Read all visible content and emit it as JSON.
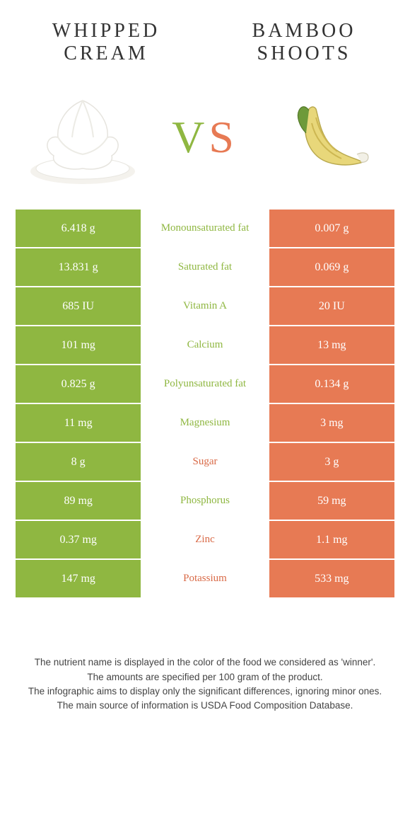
{
  "colors": {
    "left": "#8fb741",
    "right": "#e77a54",
    "left_text": "#8fb741",
    "right_text": "#d96a47"
  },
  "titles": {
    "left": "WHIPPED CREAM",
    "right": "BAMBOO SHOOTS"
  },
  "vs": {
    "v": "V",
    "s": "S"
  },
  "rows": [
    {
      "left": "6.418 g",
      "label": "Monounsaturated fat",
      "right": "0.007 g",
      "winner": "left"
    },
    {
      "left": "13.831 g",
      "label": "Saturated fat",
      "right": "0.069 g",
      "winner": "left"
    },
    {
      "left": "685 IU",
      "label": "Vitamin A",
      "right": "20 IU",
      "winner": "left"
    },
    {
      "left": "101 mg",
      "label": "Calcium",
      "right": "13 mg",
      "winner": "left"
    },
    {
      "left": "0.825 g",
      "label": "Polyunsaturated fat",
      "right": "0.134 g",
      "winner": "left"
    },
    {
      "left": "11 mg",
      "label": "Magnesium",
      "right": "3 mg",
      "winner": "left"
    },
    {
      "left": "8 g",
      "label": "Sugar",
      "right": "3 g",
      "winner": "right"
    },
    {
      "left": "89 mg",
      "label": "Phosphorus",
      "right": "59 mg",
      "winner": "left"
    },
    {
      "left": "0.37 mg",
      "label": "Zinc",
      "right": "1.1 mg",
      "winner": "right"
    },
    {
      "left": "147 mg",
      "label": "Potassium",
      "right": "533 mg",
      "winner": "right"
    }
  ],
  "footer": {
    "l1": "The nutrient name is displayed in the color of the food we considered as 'winner'.",
    "l2": "The amounts are specified per 100 gram of the product.",
    "l3": "The infographic aims to display only the significant differences, ignoring minor ones.",
    "l4": "The main source of information is USDA Food Composition Database."
  }
}
